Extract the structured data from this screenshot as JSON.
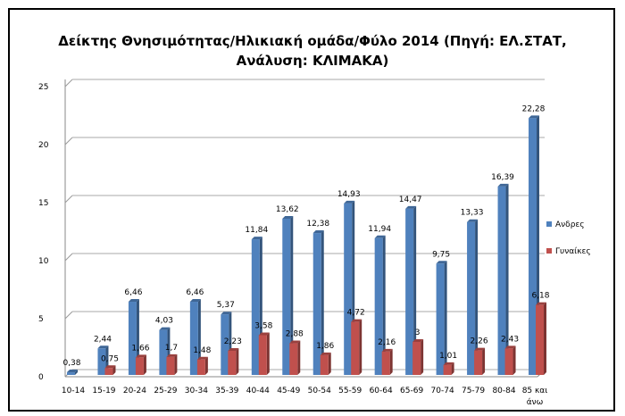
{
  "chart_data": {
    "type": "bar",
    "title_line1": "Δείκτης Θνησιμότητας/Ηλικιακή ομάδα/Φύλο 2014 (Πηγή: ΕΛ.ΣΤΑΤ,",
    "title_line2": "Ανάλυση: ΚΛΙΜΑΚΑ)",
    "xlabel": "",
    "ylabel": "",
    "ylim": [
      0,
      25
    ],
    "yticks": [
      0,
      5,
      10,
      15,
      20,
      25
    ],
    "grid": true,
    "legend_position": "right",
    "categories": [
      "10-14",
      "15-19",
      "20-24",
      "25-29",
      "30-34",
      "35-39",
      "40-44",
      "45-49",
      "50-54",
      "55-59",
      "60-64",
      "65-69",
      "70-74",
      "75-79",
      "80-84",
      "85 και άνω"
    ],
    "series": [
      {
        "name": "Ανδρες",
        "color": "#4F81BD",
        "values": [
          0.38,
          2.44,
          6.46,
          4.03,
          6.46,
          5.37,
          11.84,
          13.62,
          12.38,
          14.93,
          11.94,
          14.47,
          9.75,
          13.33,
          16.39,
          22.28
        ],
        "labels": [
          "0,38",
          "2,44",
          "6,46",
          "4,03",
          "6,46",
          "5,37",
          "11,84",
          "13,62",
          "12,38",
          "14,93",
          "11,94",
          "14,47",
          "9,75",
          "13,33",
          "16,39",
          "22,28"
        ]
      },
      {
        "name": "Γυναίκες",
        "color": "#C0504D",
        "values": [
          null,
          0.75,
          1.66,
          1.7,
          1.48,
          2.23,
          3.58,
          2.88,
          1.86,
          4.72,
          2.16,
          3,
          1.01,
          2.26,
          2.43,
          6.18
        ],
        "labels": [
          null,
          "0,75",
          "1,66",
          "1,7",
          "1,48",
          "2,23",
          "3,58",
          "2,88",
          "1,86",
          "4,72",
          "2,16",
          "3",
          "1,01",
          "2,26",
          "2,43",
          "6,18"
        ]
      }
    ]
  }
}
